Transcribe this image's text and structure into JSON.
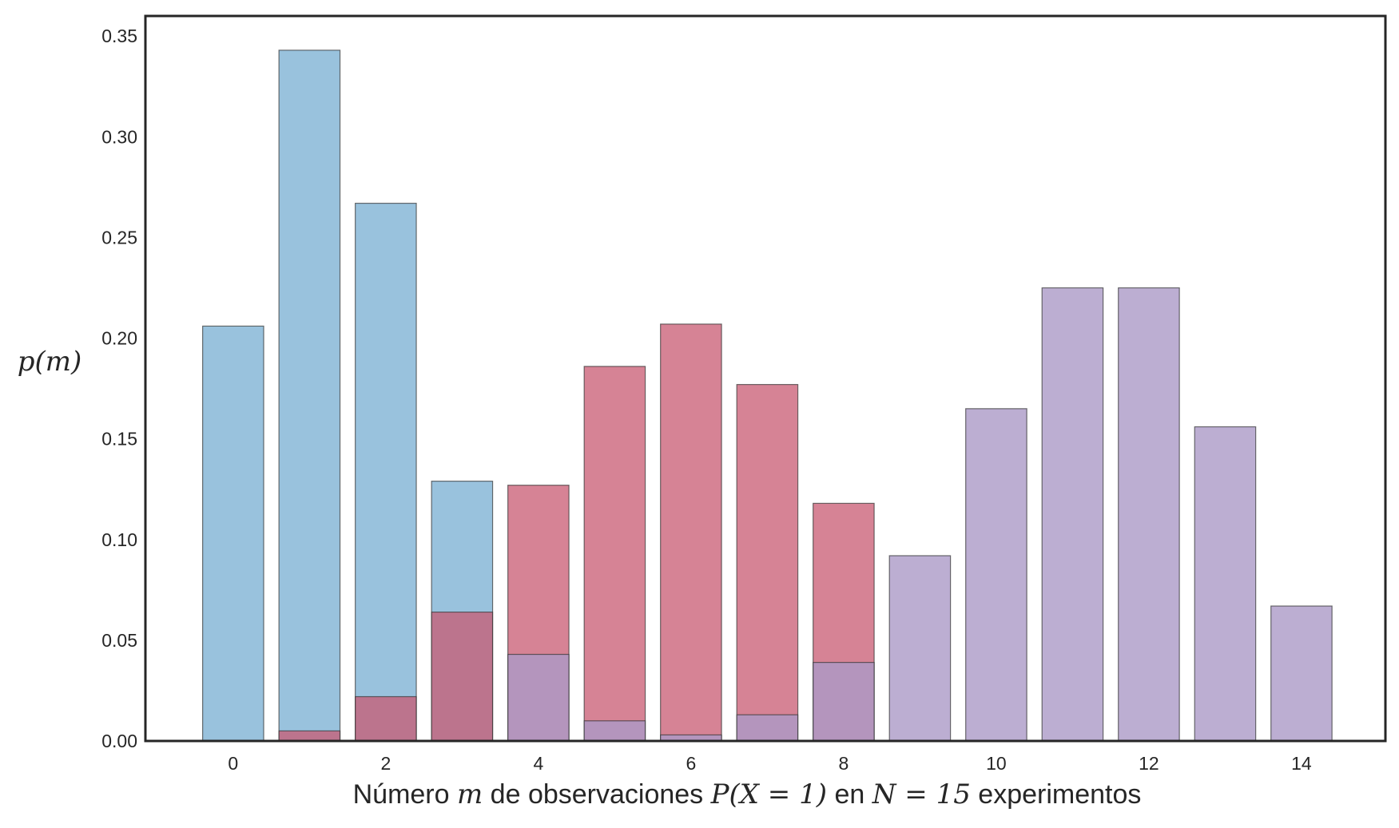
{
  "chart_data": {
    "type": "bar",
    "title": "",
    "xlabel": {
      "pre": "Número ",
      "m": "m",
      "mid": " de observaciones ",
      "expr": "P(X = 1)",
      "en": " en ",
      "nexpr": "N = 15",
      "post": " experimentos"
    },
    "ylabel": "p(m)",
    "xlim": [
      -1.15,
      15.1
    ],
    "ylim": [
      0,
      0.36
    ],
    "xticks": [
      0,
      2,
      4,
      6,
      8,
      10,
      12,
      14
    ],
    "yticks": [
      0.0,
      0.05,
      0.1,
      0.15,
      0.2,
      0.25,
      0.3,
      0.35
    ],
    "x": [
      0,
      1,
      2,
      3,
      4,
      5,
      6,
      7,
      8,
      9,
      10,
      11,
      12,
      13,
      14
    ],
    "series": [
      {
        "color": "#7fb3d5",
        "alpha": 0.8,
        "values": [
          0.206,
          0.343,
          0.267,
          0.129,
          0.0,
          0.0,
          0.0,
          0.0,
          0.0,
          0.0,
          0.0,
          0.0,
          0.0,
          0.0,
          0.0
        ]
      },
      {
        "color": "#c85a71",
        "alpha": 0.75,
        "values": [
          0.0,
          0.005,
          0.022,
          0.064,
          0.127,
          0.186,
          0.207,
          0.177,
          0.118,
          0.0,
          0.0,
          0.0,
          0.0,
          0.0,
          0.0
        ]
      },
      {
        "color": "#ab9ac7",
        "alpha": 0.8,
        "values": [
          0.0,
          0.0,
          0.0,
          0.0,
          0.043,
          0.01,
          0.003,
          0.013,
          0.039,
          0.092,
          0.165,
          0.225,
          0.225,
          0.156,
          0.067
        ]
      }
    ],
    "overlap_color": "#9e5e7e",
    "grid": false,
    "legend": "none"
  }
}
